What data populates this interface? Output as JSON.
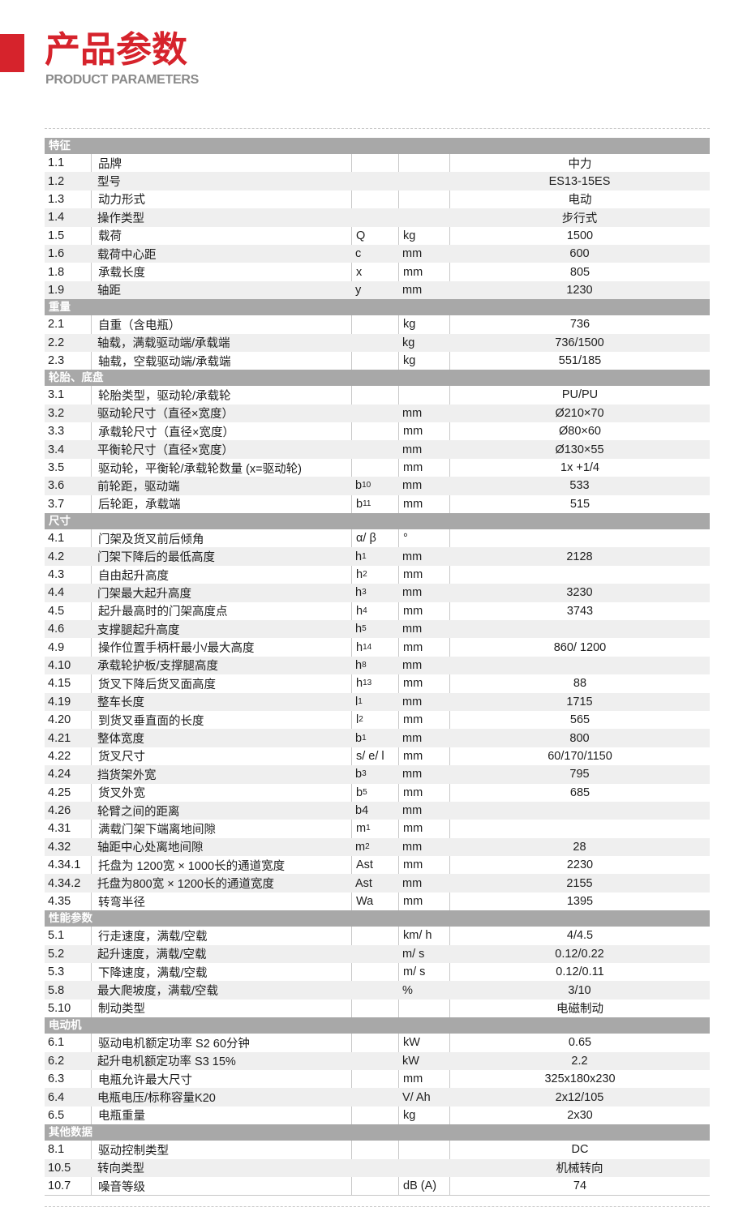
{
  "page": {
    "title_cn": "产品参数",
    "title_en": "PRODUCT PARAMETERS"
  },
  "colors": {
    "accent_red": "#d6232c",
    "section_bar_gray": "#a8a8a8",
    "alt_row_gray": "#efefef",
    "cell_border_gray": "#c8c8c8",
    "subtitle_gray": "#8a8a8a"
  },
  "table": {
    "sections": [
      {
        "title": "特征",
        "rows": [
          {
            "no": "1.1",
            "desc": "品牌",
            "sym": "",
            "sub": "",
            "unit": "",
            "val": "中力"
          },
          {
            "no": "1.2",
            "desc": "型号",
            "sym": "",
            "sub": "",
            "unit": "",
            "val": "ES13-15ES"
          },
          {
            "no": "1.3",
            "desc": "动力形式",
            "sym": "",
            "sub": "",
            "unit": "",
            "val": "电动"
          },
          {
            "no": "1.4",
            "desc": "操作类型",
            "sym": "",
            "sub": "",
            "unit": "",
            "val": "步行式"
          },
          {
            "no": "1.5",
            "desc": "载荷",
            "sym": "Q",
            "sub": "",
            "unit": "kg",
            "val": "1500"
          },
          {
            "no": "1.6",
            "desc": "载荷中心距",
            "sym": "c",
            "sub": "",
            "unit": "mm",
            "val": "600"
          },
          {
            "no": "1.8",
            "desc": "承载长度",
            "sym": "x",
            "sub": "",
            "unit": "mm",
            "val": "805"
          },
          {
            "no": "1.9",
            "desc": "轴距",
            "sym": "y",
            "sub": "",
            "unit": "mm",
            "val": "1230"
          }
        ]
      },
      {
        "title": "重量",
        "rows": [
          {
            "no": "2.1",
            "desc": "自重（含电瓶）",
            "sym": "",
            "sub": "",
            "unit": "kg",
            "val": "736"
          },
          {
            "no": "2.2",
            "desc": "轴载，满载驱动端/承载端",
            "sym": "",
            "sub": "",
            "unit": "kg",
            "val": "736/1500"
          },
          {
            "no": "2.3",
            "desc": "轴载，空载驱动端/承载端",
            "sym": "",
            "sub": "",
            "unit": "kg",
            "val": "551/185"
          }
        ]
      },
      {
        "title": "轮胎、底盘",
        "rows": [
          {
            "no": "3.1",
            "desc": "轮胎类型，驱动轮/承载轮",
            "sym": "",
            "sub": "",
            "unit": "",
            "val": "PU/PU"
          },
          {
            "no": "3.2",
            "desc": "驱动轮尺寸（直径×宽度）",
            "sym": "",
            "sub": "",
            "unit": "mm",
            "val": "Ø210×70"
          },
          {
            "no": "3.3",
            "desc": "承载轮尺寸（直径×宽度）",
            "sym": "",
            "sub": "",
            "unit": "mm",
            "val": "Ø80×60"
          },
          {
            "no": "3.4",
            "desc": "平衡轮尺寸（直径×宽度）",
            "sym": "",
            "sub": "",
            "unit": "mm",
            "val": "Ø130×55"
          },
          {
            "no": "3.5",
            "desc": "驱动轮，平衡轮/承载轮数量 (x=驱动轮)",
            "sym": "",
            "sub": "",
            "unit": "mm",
            "val": "1x +1/4"
          },
          {
            "no": "3.6",
            "desc": "前轮距，驱动端",
            "sym": "b",
            "sub": "10",
            "unit": "mm",
            "val": "533"
          },
          {
            "no": "3.7",
            "desc": "后轮距，承载端",
            "sym": "b",
            "sub": "11",
            "unit": "mm",
            "val": "515"
          }
        ]
      },
      {
        "title": "尺寸",
        "rows": [
          {
            "no": "4.1",
            "desc": "门架及货叉前后倾角",
            "sym": "α/ β",
            "sub": "",
            "unit": "°",
            "val": ""
          },
          {
            "no": "4.2",
            "desc": "门架下降后的最低高度",
            "sym": "h",
            "sub": "1",
            "unit": "mm",
            "val": "2128"
          },
          {
            "no": "4.3",
            "desc": "自由起升高度",
            "sym": "h",
            "sub": "2",
            "unit": "mm",
            "val": ""
          },
          {
            "no": "4.4",
            "desc": "门架最大起升高度",
            "sym": "h",
            "sub": "3",
            "unit": "mm",
            "val": "3230"
          },
          {
            "no": "4.5",
            "desc": "起升最高时的门架高度点",
            "sym": "h",
            "sub": "4",
            "unit": "mm",
            "val": "3743"
          },
          {
            "no": "4.6",
            "desc": "支撑腿起升高度",
            "sym": "h",
            "sub": "5",
            "unit": "mm",
            "val": ""
          },
          {
            "no": "4.9",
            "desc": "操作位置手柄杆最小/最大高度",
            "sym": "h",
            "sub": "14",
            "unit": "mm",
            "val": "860/ 1200"
          },
          {
            "no": "4.10",
            "desc": "承载轮护板/支撑腿高度",
            "sym": "h",
            "sub": "8",
            "unit": "mm",
            "val": ""
          },
          {
            "no": "4.15",
            "desc": "货叉下降后货叉面高度",
            "sym": "h",
            "sub": "13",
            "unit": "mm",
            "val": "88"
          },
          {
            "no": "4.19",
            "desc": "整车长度",
            "sym": "l",
            "sub": "1",
            "unit": "mm",
            "val": "1715"
          },
          {
            "no": "4.20",
            "desc": "到货叉垂直面的长度",
            "sym": "l",
            "sub": "2",
            "unit": "mm",
            "val": "565"
          },
          {
            "no": "4.21",
            "desc": "整体宽度",
            "sym": "b",
            "sub": "1",
            "unit": "mm",
            "val": "800"
          },
          {
            "no": "4.22",
            "desc": "货叉尺寸",
            "sym": "s/ e/ l",
            "sub": "",
            "unit": "mm",
            "val": "60/170/1150"
          },
          {
            "no": "4.24",
            "desc": "挡货架外宽",
            "sym": "b",
            "sub": "3",
            "unit": "mm",
            "val": "795"
          },
          {
            "no": "4.25",
            "desc": "货叉外宽",
            "sym": "b",
            "sub": "5",
            "unit": "mm",
            "val": "685"
          },
          {
            "no": "4.26",
            "desc": "轮臂之间的距离",
            "sym": "b4",
            "sub": "",
            "unit": "mm",
            "val": ""
          },
          {
            "no": "4.31",
            "desc": "满载门架下端离地间隙",
            "sym": "m",
            "sub": "1",
            "unit": "mm",
            "val": ""
          },
          {
            "no": "4.32",
            "desc": "轴距中心处离地间隙",
            "sym": "m",
            "sub": "2",
            "unit": "mm",
            "val": "28"
          },
          {
            "no": "4.34.1",
            "desc": "托盘为 1200宽 × 1000长的通道宽度",
            "sym": "Ast",
            "sub": "",
            "unit": "mm",
            "val": "2230"
          },
          {
            "no": "4.34.2",
            "desc": "托盘为800宽 × 1200长的通道宽度",
            "sym": "Ast",
            "sub": "",
            "unit": "mm",
            "val": "2155"
          },
          {
            "no": "4.35",
            "desc": "转弯半径",
            "sym": "Wa",
            "sub": "",
            "unit": "mm",
            "val": "1395"
          }
        ]
      },
      {
        "title": "性能参数",
        "rows": [
          {
            "no": "5.1",
            "desc": "行走速度，满载/空载",
            "sym": "",
            "sub": "",
            "unit": "km/ h",
            "val": "4/4.5"
          },
          {
            "no": "5.2",
            "desc": "起升速度，满载/空载",
            "sym": "",
            "sub": "",
            "unit": "m/ s",
            "val": "0.12/0.22"
          },
          {
            "no": "5.3",
            "desc": "下降速度，满载/空载",
            "sym": "",
            "sub": "",
            "unit": "m/ s",
            "val": "0.12/0.11"
          },
          {
            "no": "5.8",
            "desc": "最大爬坡度，满载/空载",
            "sym": "",
            "sub": "",
            "unit": "%",
            "val": "3/10"
          },
          {
            "no": "5.10",
            "desc": "制动类型",
            "sym": "",
            "sub": "",
            "unit": "",
            "val": "电磁制动"
          }
        ]
      },
      {
        "title": "电动机",
        "rows": [
          {
            "no": "6.1",
            "desc": "驱动电机额定功率 S2 60分钟",
            "sym": "",
            "sub": "",
            "unit": "kW",
            "val": "0.65"
          },
          {
            "no": "6.2",
            "desc": "起升电机额定功率 S3 15%",
            "sym": "",
            "sub": "",
            "unit": "kW",
            "val": "2.2"
          },
          {
            "no": "6.3",
            "desc": "电瓶允许最大尺寸",
            "sym": "",
            "sub": "",
            "unit": "mm",
            "val": "325x180x230"
          },
          {
            "no": "6.4",
            "desc": "电瓶电压/标称容量K20",
            "sym": "",
            "sub": "",
            "unit": "V/ Ah",
            "val": "2x12/105"
          },
          {
            "no": "6.5",
            "desc": "电瓶重量",
            "sym": "",
            "sub": "",
            "unit": "kg",
            "val": "2x30"
          }
        ]
      },
      {
        "title": "其他数据",
        "rows": [
          {
            "no": "8.1",
            "desc": "驱动控制类型",
            "sym": "",
            "sub": "",
            "unit": "",
            "val": "DC"
          },
          {
            "no": "10.5",
            "desc": "转向类型",
            "sym": "",
            "sub": "",
            "unit": "",
            "val": "机械转向"
          },
          {
            "no": "10.7",
            "desc": "噪音等级",
            "sym": "",
            "sub": "",
            "unit": "dB (A)",
            "val": "74"
          }
        ]
      }
    ]
  }
}
